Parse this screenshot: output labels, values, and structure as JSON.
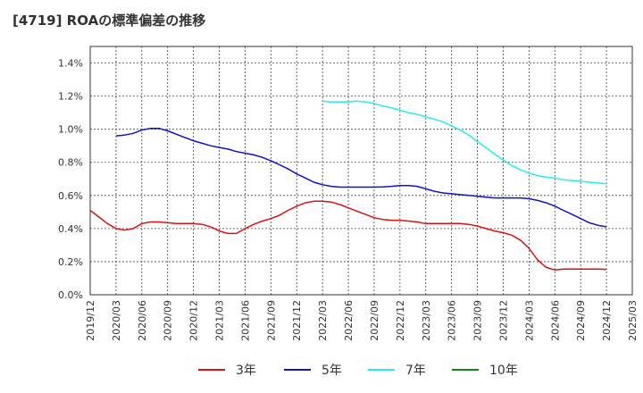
{
  "chart_data": {
    "type": "line",
    "title": "[4719]  ROAの標準偏差の推移",
    "x_ticks": [
      "2019/12",
      "2020/03",
      "2020/06",
      "2020/09",
      "2020/12",
      "2021/03",
      "2021/06",
      "2021/09",
      "2021/12",
      "2022/03",
      "2022/06",
      "2022/09",
      "2022/12",
      "2023/03",
      "2023/06",
      "2023/09",
      "2023/12",
      "2024/03",
      "2024/06",
      "2024/09",
      "2024/12",
      "2025/03"
    ],
    "y_ticks": [
      "0.0%",
      "0.2%",
      "0.4%",
      "0.6%",
      "0.8%",
      "1.0%",
      "1.2%",
      "1.4%"
    ],
    "ylim": [
      0,
      1.5
    ],
    "grid": true,
    "legend_position": "bottom",
    "series": [
      {
        "name": "3年",
        "color": "#dd1111",
        "x": [
          "2019/12",
          "2020/01",
          "2020/02",
          "2020/03",
          "2020/04",
          "2020/05",
          "2020/06",
          "2020/07",
          "2020/08",
          "2020/09",
          "2020/10",
          "2020/11",
          "2020/12",
          "2021/01",
          "2021/02",
          "2021/03",
          "2021/04",
          "2021/05",
          "2021/06",
          "2021/07",
          "2021/08",
          "2021/09",
          "2021/10",
          "2021/11",
          "2021/12",
          "2022/01",
          "2022/02",
          "2022/03",
          "2022/04",
          "2022/05",
          "2022/06",
          "2022/07",
          "2022/08",
          "2022/09",
          "2022/10",
          "2022/11",
          "2022/12",
          "2023/01",
          "2023/02",
          "2023/03",
          "2023/04",
          "2023/05",
          "2023/06",
          "2023/07",
          "2023/08",
          "2023/09",
          "2023/10",
          "2023/11",
          "2023/12",
          "2024/01",
          "2024/02",
          "2024/03",
          "2024/04",
          "2024/05",
          "2024/06",
          "2024/07",
          "2024/08",
          "2024/09",
          "2024/10",
          "2024/11",
          "2024/12"
        ],
        "values": [
          0.51,
          0.47,
          0.43,
          0.4,
          0.39,
          0.4,
          0.43,
          0.44,
          0.44,
          0.435,
          0.43,
          0.43,
          0.43,
          0.425,
          0.41,
          0.385,
          0.37,
          0.37,
          0.4,
          0.425,
          0.445,
          0.46,
          0.48,
          0.51,
          0.535,
          0.555,
          0.565,
          0.565,
          0.56,
          0.545,
          0.525,
          0.505,
          0.485,
          0.465,
          0.455,
          0.45,
          0.45,
          0.445,
          0.44,
          0.43,
          0.43,
          0.43,
          0.43,
          0.43,
          0.425,
          0.415,
          0.4,
          0.385,
          0.375,
          0.36,
          0.33,
          0.28,
          0.21,
          0.165,
          0.15,
          0.155,
          0.155,
          0.155,
          0.155,
          0.155,
          0.153
        ]
      },
      {
        "name": "5年",
        "color": "#1111cc",
        "x": [
          "2020/03",
          "2020/04",
          "2020/05",
          "2020/06",
          "2020/07",
          "2020/08",
          "2020/09",
          "2020/10",
          "2020/11",
          "2020/12",
          "2021/01",
          "2021/02",
          "2021/03",
          "2021/04",
          "2021/05",
          "2021/06",
          "2021/07",
          "2021/08",
          "2021/09",
          "2021/10",
          "2021/11",
          "2021/12",
          "2022/01",
          "2022/02",
          "2022/03",
          "2022/04",
          "2022/05",
          "2022/06",
          "2022/07",
          "2022/08",
          "2022/09",
          "2022/10",
          "2022/11",
          "2022/12",
          "2023/01",
          "2023/02",
          "2023/03",
          "2023/04",
          "2023/05",
          "2023/06",
          "2023/07",
          "2023/08",
          "2023/09",
          "2023/10",
          "2023/11",
          "2023/12",
          "2024/01",
          "2024/02",
          "2024/03",
          "2024/04",
          "2024/05",
          "2024/06",
          "2024/07",
          "2024/08",
          "2024/09",
          "2024/10",
          "2024/11",
          "2024/12"
        ],
        "values": [
          0.96,
          0.965,
          0.975,
          0.995,
          1.005,
          1.005,
          0.99,
          0.97,
          0.95,
          0.93,
          0.915,
          0.9,
          0.89,
          0.88,
          0.865,
          0.855,
          0.845,
          0.83,
          0.81,
          0.785,
          0.76,
          0.73,
          0.705,
          0.68,
          0.665,
          0.655,
          0.65,
          0.65,
          0.65,
          0.65,
          0.65,
          0.652,
          0.655,
          0.66,
          0.66,
          0.655,
          0.64,
          0.625,
          0.615,
          0.61,
          0.605,
          0.6,
          0.595,
          0.59,
          0.585,
          0.585,
          0.585,
          0.585,
          0.58,
          0.57,
          0.555,
          0.535,
          0.51,
          0.485,
          0.46,
          0.435,
          0.42,
          0.41
        ]
      },
      {
        "name": "7年",
        "color": "#22eeee",
        "x": [
          "2022/03",
          "2022/04",
          "2022/05",
          "2022/06",
          "2022/07",
          "2022/08",
          "2022/09",
          "2022/10",
          "2022/11",
          "2022/12",
          "2023/01",
          "2023/02",
          "2023/03",
          "2023/04",
          "2023/05",
          "2023/06",
          "2023/07",
          "2023/08",
          "2023/09",
          "2023/10",
          "2023/11",
          "2023/12",
          "2024/01",
          "2024/02",
          "2024/03",
          "2024/04",
          "2024/05",
          "2024/06",
          "2024/07",
          "2024/08",
          "2024/09",
          "2024/10",
          "2024/11",
          "2024/12"
        ],
        "values": [
          1.17,
          1.165,
          1.165,
          1.165,
          1.17,
          1.165,
          1.155,
          1.14,
          1.13,
          1.115,
          1.1,
          1.09,
          1.075,
          1.06,
          1.045,
          1.02,
          0.995,
          0.965,
          0.925,
          0.89,
          0.85,
          0.815,
          0.78,
          0.755,
          0.735,
          0.72,
          0.71,
          0.705,
          0.695,
          0.69,
          0.685,
          0.68,
          0.675,
          0.67
        ]
      },
      {
        "name": "10年",
        "color": "#118811",
        "x": [],
        "values": []
      }
    ]
  }
}
